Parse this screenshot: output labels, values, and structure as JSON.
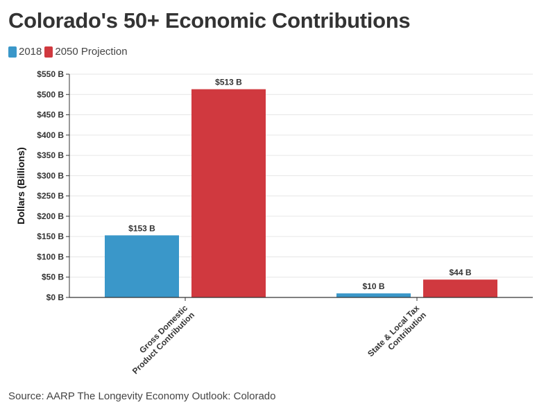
{
  "chart_data": {
    "type": "bar",
    "title": "Colorado's 50+ Economic Contributions",
    "categories": [
      [
        "Gross Domestic",
        "Product Contribution"
      ],
      [
        "State & Local Tax",
        "Contribution"
      ]
    ],
    "series": [
      {
        "name": "2018",
        "color": "#3a97c9",
        "values": [
          153,
          10
        ],
        "labels": [
          "$153 B",
          "$10 B"
        ]
      },
      {
        "name": "2050 Projection",
        "color": "#d0393f",
        "values": [
          513,
          44
        ],
        "labels": [
          "$513 B",
          "$44 B"
        ]
      }
    ],
    "ylabel": "Dollars (Billions)",
    "ylim": [
      0,
      550
    ],
    "yticks": [
      0,
      50,
      100,
      150,
      200,
      250,
      300,
      350,
      400,
      450,
      500,
      550
    ],
    "ytick_labels": [
      "$0 B",
      "$50 B",
      "$100 B",
      "$150 B",
      "$200 B",
      "$250 B",
      "$300 B",
      "$350 B",
      "$400 B",
      "$450 B",
      "$500 B",
      "$550 B"
    ],
    "grid": true,
    "legend_position": "top-left"
  },
  "source": "Source: AARP The Longevity Economy Outlook: Colorado"
}
